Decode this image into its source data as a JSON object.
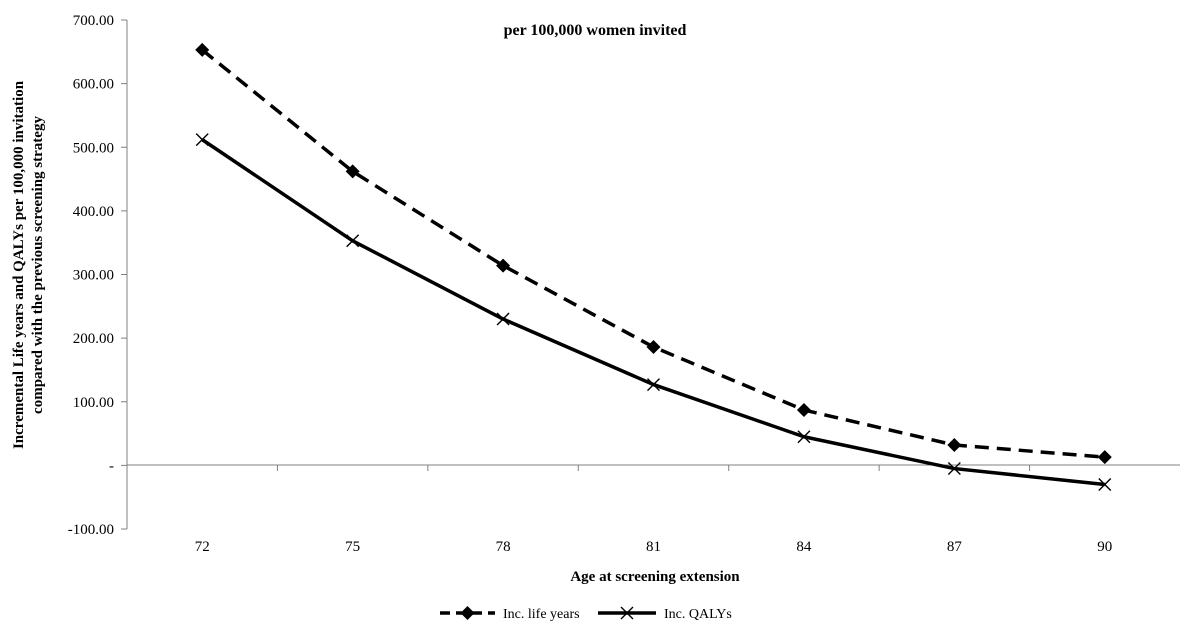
{
  "chart_data": {
    "type": "line",
    "title": "per 100,000 women invited",
    "xlabel": "Age at screening extension",
    "ylabel": "Incremental Life years and QALYs per 100,000 invitation compared with the previous screening strategy",
    "categories": [
      "72",
      "75",
      "78",
      "81",
      "84",
      "87",
      "90"
    ],
    "ylim": [
      -100,
      700
    ],
    "y_ticks": [
      -100,
      0,
      100,
      200,
      300,
      400,
      500,
      600,
      700
    ],
    "y_tick_labels": [
      "-100.00",
      "-",
      "100.00",
      "200.00",
      "300.00",
      "400.00",
      "500.00",
      "600.00",
      "700.00"
    ],
    "grid": false,
    "legend_position": "bottom",
    "series": [
      {
        "name": "Inc. life years",
        "values": [
          653,
          462,
          314,
          186,
          87,
          32,
          13
        ],
        "line_style": "dashed",
        "marker": "diamond",
        "color": "#000000"
      },
      {
        "name": "Inc. QALYs",
        "values": [
          512,
          353,
          230,
          127,
          45,
          -5,
          -30
        ],
        "line_style": "solid",
        "marker": "x",
        "color": "#000000"
      }
    ]
  }
}
